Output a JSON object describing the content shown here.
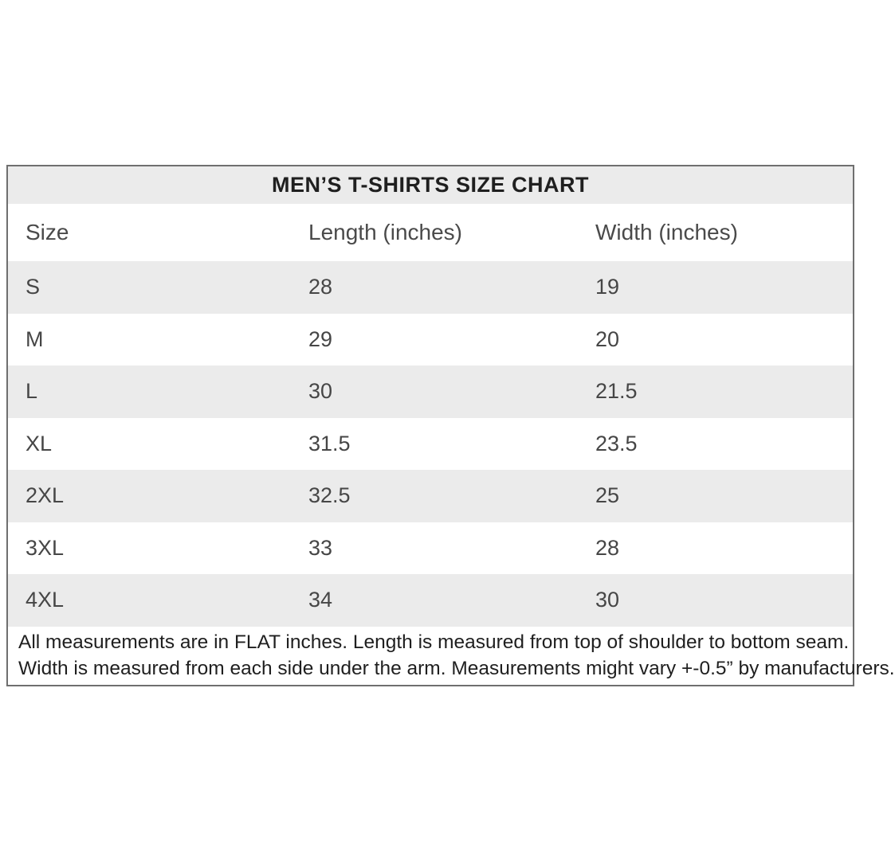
{
  "chart_data": {
    "type": "table",
    "title": "MEN’S T-SHIRTS SIZE CHART",
    "columns": [
      "Size",
      "Length (inches)",
      "Width (inches)"
    ],
    "rows": [
      {
        "size": "S",
        "length": "28",
        "width": "19"
      },
      {
        "size": "M",
        "length": "29",
        "width": "20"
      },
      {
        "size": "L",
        "length": "30",
        "width": "21.5"
      },
      {
        "size": "XL",
        "length": "31.5",
        "width": "23.5"
      },
      {
        "size": "2XL",
        "length": "32.5",
        "width": "25"
      },
      {
        "size": "3XL",
        "length": "33",
        "width": "28"
      },
      {
        "size": "4XL",
        "length": "34",
        "width": "30"
      }
    ],
    "notes": [
      "All measurements are in FLAT inches. Length is measured from top of shoulder to bottom seam.",
      "Width is measured from each side under the arm. Measurements might vary +-0.5” by manufacturers."
    ],
    "layout": {
      "zebra_striping": true,
      "stripe_color": "#ebebeb",
      "border_color": "#6f6f6f",
      "background": "#ffffff"
    }
  }
}
